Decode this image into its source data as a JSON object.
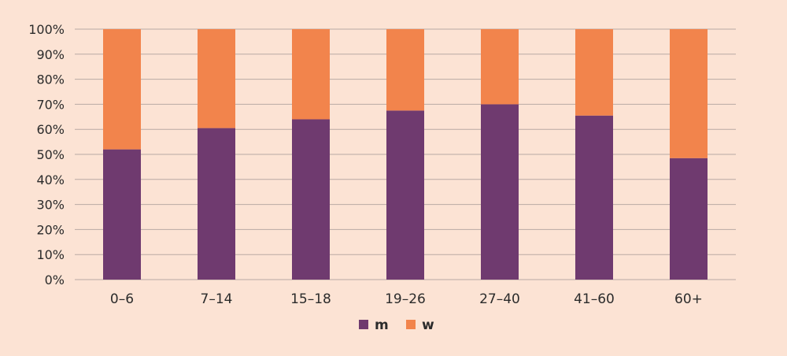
{
  "chart_data": {
    "type": "bar",
    "stacked": true,
    "categories": [
      "0–6",
      "7–14",
      "15–18",
      "19–26",
      "27–40",
      "41–60",
      "60+"
    ],
    "series": [
      {
        "name": "m",
        "color": "#6f3a6f",
        "values": [
          52,
          60.5,
          64,
          67.5,
          70,
          65.5,
          48.5
        ]
      },
      {
        "name": "w",
        "color": "#f2844c",
        "values": [
          48,
          39.5,
          36,
          32.5,
          30,
          34.5,
          51.5
        ]
      }
    ],
    "ylim": [
      0,
      100
    ],
    "yticks": [
      "0%",
      "10%",
      "20%",
      "30%",
      "40%",
      "50%",
      "60%",
      "70%",
      "80%",
      "90%",
      "100%"
    ],
    "grid": true,
    "legend_position": "bottom-center"
  }
}
